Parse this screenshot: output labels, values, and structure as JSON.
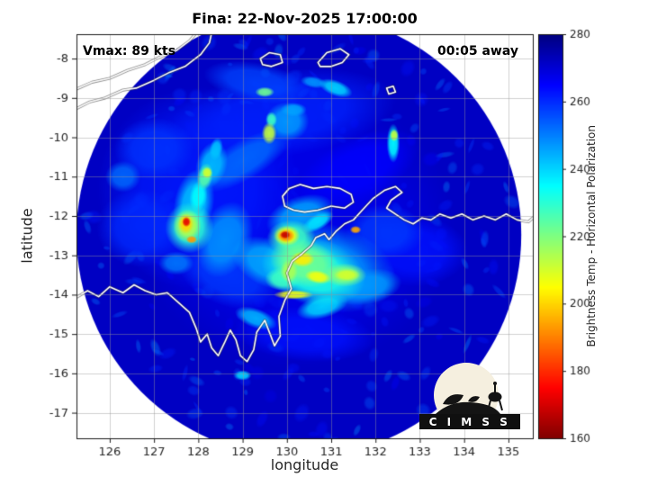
{
  "header": {
    "title": "Fina: 22-Nov-2025 17:00:00"
  },
  "overlays": {
    "vmax": "Vmax: 89 kts",
    "eta": "00:05 away"
  },
  "axes": {
    "xlabel": "longitude",
    "ylabel": "latitude"
  },
  "colorbar_label": "Brightness Temp - Horizontal Polarization",
  "logo": {
    "text": "C I M S S"
  },
  "chart_data": {
    "type": "heatmap",
    "title": "Fina: 22-Nov-2025 17:00:00",
    "xlabel": "longitude",
    "ylabel": "latitude",
    "xlim": [
      125.25,
      135.55
    ],
    "ylim": [
      -17.65,
      -7.38
    ],
    "x_ticks": [
      126,
      127,
      128,
      129,
      130,
      131,
      132,
      133,
      134,
      135
    ],
    "y_ticks": [
      -8,
      -9,
      -10,
      -11,
      -12,
      -13,
      -14,
      -15,
      -16,
      -17
    ],
    "grid": true,
    "colorbar": {
      "label": "Brightness Temp - Horizontal Polarization",
      "min": 160,
      "max": 280,
      "ticks": [
        160,
        180,
        200,
        220,
        240,
        260,
        280
      ],
      "colormap": "jet (280 K = dark blue, 160 K = dark red)"
    },
    "storm": {
      "name": "Fina",
      "valid_time": "22-Nov-2025 17:00:00",
      "vmax_kts": 89,
      "time_away": "00:05",
      "center_lon": 130.0,
      "center_lat": -12.5
    },
    "swath": {
      "center_lon": 130.27,
      "center_lat": -12.48,
      "radius_deg": 5.02,
      "edge_temp_K": 272
    },
    "features_format": [
      "lon",
      "lat",
      "rx_deg",
      "ry_deg",
      "rot_deg",
      "temp_K"
    ],
    "features": [
      [
        130.2,
        -12.3,
        3.6,
        3.6,
        0,
        267
      ],
      [
        128.0,
        -11.3,
        2.3,
        2.6,
        0,
        262
      ],
      [
        129.9,
        -9.4,
        2.6,
        1.1,
        -8,
        261
      ],
      [
        131.6,
        -10.8,
        1.5,
        0.8,
        -25,
        265
      ],
      [
        132.9,
        -12.9,
        1.2,
        0.9,
        0,
        263
      ],
      [
        130.4,
        -15.0,
        1.6,
        0.7,
        5,
        263
      ],
      [
        128.7,
        -13.5,
        1.2,
        0.8,
        20,
        258
      ],
      [
        126.7,
        -12.3,
        1.0,
        1.0,
        0,
        260
      ],
      [
        127.0,
        -10.3,
        0.9,
        0.8,
        0,
        259
      ],
      [
        132.2,
        -12.4,
        0.9,
        0.7,
        0,
        258
      ],
      [
        129.3,
        -8.6,
        1.2,
        0.5,
        10,
        257
      ],
      [
        129.0,
        -10.6,
        1.2,
        0.5,
        -30,
        252
      ],
      [
        128.6,
        -12.6,
        0.6,
        1.0,
        20,
        248
      ],
      [
        130.9,
        -13.3,
        1.6,
        1.1,
        15,
        248
      ],
      [
        129.6,
        -13.2,
        0.9,
        0.6,
        25,
        245
      ],
      [
        127.9,
        -11.7,
        0.45,
        0.9,
        10,
        242
      ],
      [
        128.3,
        -10.7,
        0.35,
        0.6,
        15,
        243
      ],
      [
        130.3,
        -12.0,
        0.8,
        0.5,
        -20,
        246
      ],
      [
        131.8,
        -13.8,
        0.8,
        0.45,
        -10,
        247
      ],
      [
        130.0,
        -9.6,
        0.5,
        0.5,
        0,
        247
      ],
      [
        131.1,
        -8.75,
        0.4,
        0.2,
        20,
        240
      ],
      [
        130.6,
        -8.6,
        0.3,
        0.15,
        10,
        248
      ],
      [
        132.4,
        -10.15,
        0.15,
        0.5,
        0,
        235
      ],
      [
        129.0,
        -16.05,
        0.2,
        0.13,
        0,
        240
      ],
      [
        127.5,
        -13.2,
        0.4,
        0.3,
        0,
        250
      ],
      [
        126.3,
        -11.0,
        0.4,
        0.4,
        0,
        252
      ],
      [
        129.3,
        -14.6,
        0.5,
        0.25,
        20,
        244
      ],
      [
        130.8,
        -14.3,
        0.6,
        0.3,
        -15,
        240
      ],
      [
        130.6,
        -13.4,
        1.2,
        0.85,
        15,
        232
      ],
      [
        130.4,
        -13.2,
        0.8,
        0.6,
        15,
        222
      ],
      [
        131.3,
        -13.5,
        0.5,
        0.3,
        0,
        220
      ],
      [
        129.9,
        -13.6,
        0.4,
        0.3,
        0,
        228
      ],
      [
        130.35,
        -13.1,
        0.28,
        0.2,
        0,
        203
      ],
      [
        130.7,
        -13.55,
        0.3,
        0.17,
        10,
        206
      ],
      [
        131.35,
        -13.5,
        0.3,
        0.16,
        0,
        210
      ],
      [
        130.15,
        -14.0,
        0.45,
        0.12,
        0,
        207
      ],
      [
        130.05,
        -13.4,
        0.2,
        0.3,
        0,
        215
      ],
      [
        130.1,
        -12.55,
        0.55,
        0.45,
        0,
        228
      ],
      [
        130.0,
        -12.5,
        0.3,
        0.26,
        0,
        205
      ],
      [
        129.98,
        -12.5,
        0.2,
        0.17,
        0,
        190
      ],
      [
        129.96,
        -12.48,
        0.12,
        0.1,
        0,
        168
      ],
      [
        131.55,
        -12.35,
        0.13,
        0.1,
        0,
        195
      ],
      [
        130.7,
        -12.15,
        0.4,
        0.2,
        -30,
        238
      ],
      [
        127.8,
        -12.3,
        0.55,
        0.65,
        0,
        230
      ],
      [
        127.75,
        -12.25,
        0.32,
        0.42,
        0,
        214
      ],
      [
        127.72,
        -12.2,
        0.18,
        0.26,
        0,
        200
      ],
      [
        127.73,
        -12.15,
        0.1,
        0.13,
        0,
        172
      ],
      [
        127.85,
        -12.6,
        0.13,
        0.1,
        0,
        193
      ],
      [
        128.15,
        -11.0,
        0.18,
        0.35,
        10,
        225
      ],
      [
        128.2,
        -10.9,
        0.12,
        0.15,
        0,
        210
      ],
      [
        128.0,
        -11.5,
        0.2,
        0.4,
        8,
        235
      ],
      [
        128.4,
        -10.3,
        0.15,
        0.3,
        12,
        242
      ],
      [
        129.6,
        -9.9,
        0.17,
        0.28,
        0,
        212
      ],
      [
        129.65,
        -9.55,
        0.13,
        0.2,
        0,
        228
      ],
      [
        129.5,
        -8.85,
        0.22,
        0.13,
        0,
        222
      ],
      [
        130.15,
        -9.3,
        0.3,
        0.18,
        0,
        246
      ],
      [
        132.42,
        -9.95,
        0.1,
        0.16,
        0,
        212
      ]
    ],
    "coastlines": [
      {
        "name": "timor-south-coast",
        "points": [
          [
            125.2,
            -9.3
          ],
          [
            125.55,
            -9.1
          ],
          [
            125.9,
            -9.0
          ],
          [
            126.3,
            -8.8
          ],
          [
            126.6,
            -8.75
          ],
          [
            127.0,
            -8.55
          ],
          [
            127.35,
            -8.35
          ],
          [
            127.7,
            -8.2
          ],
          [
            128.05,
            -7.9
          ],
          [
            128.25,
            -7.6
          ],
          [
            128.3,
            -7.35
          ]
        ]
      },
      {
        "name": "timor-north-coast",
        "points": [
          [
            125.2,
            -8.8
          ],
          [
            125.6,
            -8.6
          ],
          [
            126.0,
            -8.5
          ],
          [
            126.4,
            -8.3
          ],
          [
            126.8,
            -8.15
          ],
          [
            127.15,
            -7.95
          ],
          [
            127.5,
            -7.8
          ],
          [
            127.8,
            -7.55
          ],
          [
            127.95,
            -7.35
          ]
        ]
      },
      {
        "name": "island-babar",
        "points": [
          [
            129.4,
            -8.0
          ],
          [
            129.6,
            -7.85
          ],
          [
            129.85,
            -7.9
          ],
          [
            129.9,
            -8.1
          ],
          [
            129.65,
            -8.2
          ],
          [
            129.45,
            -8.15
          ],
          [
            129.4,
            -8.0
          ]
        ]
      },
      {
        "name": "island-tanimbar",
        "points": [
          [
            130.7,
            -8.1
          ],
          [
            130.9,
            -7.85
          ],
          [
            131.2,
            -7.75
          ],
          [
            131.4,
            -7.9
          ],
          [
            131.25,
            -8.1
          ],
          [
            131.0,
            -8.2
          ],
          [
            130.75,
            -8.2
          ],
          [
            130.7,
            -8.1
          ]
        ]
      },
      {
        "name": "small-island",
        "points": [
          [
            132.25,
            -8.75
          ],
          [
            132.4,
            -8.7
          ],
          [
            132.45,
            -8.85
          ],
          [
            132.3,
            -8.9
          ],
          [
            132.25,
            -8.75
          ]
        ]
      },
      {
        "name": "tiwi-islands",
        "points": [
          [
            129.95,
            -11.75
          ],
          [
            129.9,
            -11.5
          ],
          [
            130.05,
            -11.3
          ],
          [
            130.3,
            -11.2
          ],
          [
            130.6,
            -11.3
          ],
          [
            130.9,
            -11.25
          ],
          [
            131.2,
            -11.3
          ],
          [
            131.45,
            -11.45
          ],
          [
            131.5,
            -11.65
          ],
          [
            131.3,
            -11.8
          ],
          [
            131.0,
            -11.75
          ],
          [
            130.7,
            -11.85
          ],
          [
            130.4,
            -11.9
          ],
          [
            130.15,
            -11.85
          ],
          [
            129.95,
            -11.75
          ]
        ]
      },
      {
        "name": "australia-north-coast",
        "points": [
          [
            125.2,
            -14.1
          ],
          [
            125.5,
            -13.9
          ],
          [
            125.75,
            -14.05
          ],
          [
            126.0,
            -13.8
          ],
          [
            126.3,
            -13.95
          ],
          [
            126.55,
            -13.75
          ],
          [
            126.8,
            -13.9
          ],
          [
            127.05,
            -14.0
          ],
          [
            127.3,
            -13.95
          ],
          [
            127.55,
            -14.2
          ],
          [
            127.8,
            -14.45
          ],
          [
            127.95,
            -14.85
          ],
          [
            128.05,
            -15.2
          ],
          [
            128.2,
            -15.0
          ],
          [
            128.3,
            -15.35
          ],
          [
            128.45,
            -15.55
          ],
          [
            128.6,
            -15.2
          ],
          [
            128.72,
            -14.9
          ],
          [
            128.85,
            -15.15
          ],
          [
            128.95,
            -15.55
          ],
          [
            129.1,
            -15.7
          ],
          [
            129.25,
            -15.4
          ],
          [
            129.32,
            -14.95
          ],
          [
            129.5,
            -14.65
          ],
          [
            129.62,
            -15.0
          ],
          [
            129.72,
            -15.3
          ],
          [
            129.85,
            -15.05
          ],
          [
            129.82,
            -14.55
          ],
          [
            129.95,
            -14.15
          ],
          [
            130.1,
            -13.85
          ],
          [
            130.0,
            -13.45
          ],
          [
            130.12,
            -13.15
          ],
          [
            130.35,
            -12.95
          ],
          [
            130.55,
            -12.75
          ],
          [
            130.65,
            -12.55
          ],
          [
            130.85,
            -12.45
          ],
          [
            130.95,
            -12.6
          ],
          [
            131.1,
            -12.4
          ],
          [
            131.3,
            -12.2
          ],
          [
            131.5,
            -12.1
          ],
          [
            131.7,
            -11.85
          ],
          [
            131.95,
            -11.55
          ],
          [
            132.2,
            -11.35
          ],
          [
            132.45,
            -11.25
          ],
          [
            132.6,
            -11.4
          ],
          [
            132.35,
            -11.6
          ],
          [
            132.25,
            -11.8
          ],
          [
            132.45,
            -11.95
          ],
          [
            132.65,
            -12.1
          ],
          [
            132.85,
            -12.2
          ],
          [
            133.05,
            -12.05
          ],
          [
            133.25,
            -12.1
          ],
          [
            133.45,
            -11.95
          ],
          [
            133.7,
            -12.05
          ],
          [
            133.95,
            -11.95
          ],
          [
            134.2,
            -12.1
          ],
          [
            134.45,
            -12.0
          ],
          [
            134.7,
            -12.1
          ],
          [
            134.95,
            -11.95
          ],
          [
            135.2,
            -12.1
          ],
          [
            135.45,
            -12.15
          ],
          [
            135.6,
            -12.0
          ]
        ]
      }
    ]
  }
}
